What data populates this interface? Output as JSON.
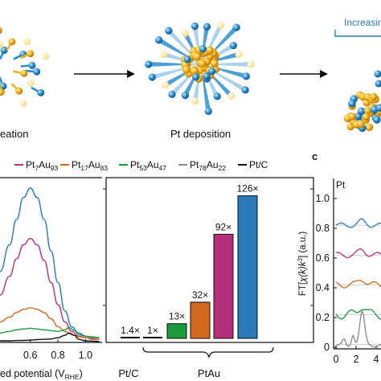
{
  "schematic": {
    "step_labels": [
      "eation",
      "Pt deposition"
    ],
    "increasing_label": "Increasin"
  },
  "panel_c_letter": "c",
  "legend": [
    {
      "base": "Pt",
      "sub1": "7",
      "mid": "Au",
      "sub2": "93",
      "color": "#b5307a"
    },
    {
      "base": "Pt",
      "sub1": "17",
      "mid": "Au",
      "sub2": "83",
      "color": "#d2691e"
    },
    {
      "base": "Pt",
      "sub1": "53",
      "mid": "Au",
      "sub2": "47",
      "color": "#1a9a3a"
    },
    {
      "base": "Pt",
      "sub1": "78",
      "mid": "Au",
      "sub2": "22",
      "color": "#888888"
    },
    {
      "base": "Pt/C",
      "sub1": "",
      "mid": "",
      "sub2": "",
      "color": "#111111"
    }
  ],
  "chart_data": [
    {
      "type": "line",
      "xlabel_visible": "ed potential (V",
      "xlabel_sub": "RHE",
      "xlabel_end": ")",
      "x_ticks": [
        "0.6",
        "0.8",
        "1.0"
      ],
      "xlim": [
        0.38,
        1.12
      ],
      "series": [
        {
          "name": "",
          "color": "#2a7ab8",
          "x": [
            0.38,
            0.45,
            0.5,
            0.55,
            0.6,
            0.65,
            0.7,
            0.75,
            0.8,
            0.85,
            0.9,
            0.95,
            1.0,
            1.05,
            1.1
          ],
          "y": [
            0.45,
            0.62,
            0.78,
            0.92,
            0.98,
            0.92,
            0.78,
            0.58,
            0.38,
            0.2,
            0.1,
            0.06,
            0.04,
            0.03,
            0.03
          ]
        },
        {
          "name": "Pt7Au93",
          "color": "#b5307a",
          "x": [
            0.38,
            0.45,
            0.5,
            0.55,
            0.6,
            0.65,
            0.7,
            0.75,
            0.8,
            0.85,
            0.9,
            0.95,
            1.0,
            1.05,
            1.1
          ],
          "y": [
            0.3,
            0.42,
            0.53,
            0.62,
            0.66,
            0.62,
            0.52,
            0.38,
            0.24,
            0.13,
            0.07,
            0.04,
            0.03,
            0.02,
            0.02
          ]
        },
        {
          "name": "Pt17Au83",
          "color": "#d2691e",
          "x": [
            0.38,
            0.45,
            0.5,
            0.55,
            0.6,
            0.65,
            0.7,
            0.75,
            0.8,
            0.85,
            0.9,
            0.95,
            1.0,
            1.05,
            1.1
          ],
          "y": [
            0.13,
            0.16,
            0.19,
            0.21,
            0.22,
            0.21,
            0.19,
            0.15,
            0.1,
            0.07,
            0.05,
            0.035,
            0.03,
            0.025,
            0.02
          ]
        },
        {
          "name": "Pt53Au47",
          "color": "#1a9a3a",
          "x": [
            0.38,
            0.45,
            0.5,
            0.55,
            0.6,
            0.65,
            0.7,
            0.75,
            0.8,
            0.85,
            0.88,
            0.92,
            0.95,
            1.0,
            1.05,
            1.1
          ],
          "y": [
            0.06,
            0.07,
            0.08,
            0.085,
            0.09,
            0.085,
            0.08,
            0.075,
            0.07,
            0.08,
            0.095,
            0.075,
            0.05,
            0.04,
            0.035,
            0.03
          ]
        },
        {
          "name": "Pt/C",
          "color": "#111111",
          "x": [
            0.38,
            0.45,
            0.5,
            0.55,
            0.6,
            0.65,
            0.7,
            0.75,
            0.8,
            0.85,
            0.88,
            0.92,
            0.95,
            1.0,
            1.05,
            1.1
          ],
          "y": [
            0.01,
            0.01,
            0.012,
            0.013,
            0.015,
            0.018,
            0.02,
            0.022,
            0.03,
            0.045,
            0.06,
            0.045,
            0.02,
            0.01,
            0.008,
            0.006
          ]
        }
      ]
    },
    {
      "type": "bar",
      "categories": [
        "Pt/C",
        "1×",
        "13×",
        "32×",
        "92×",
        "126×"
      ],
      "values": [
        1.4,
        1,
        13,
        32,
        92,
        126
      ],
      "value_labels": [
        "1.4×",
        "1×",
        "13×",
        "32×",
        "92×",
        "126×"
      ],
      "colors": [
        "#111111",
        "#111111",
        "#1a9a3a",
        "#d2691e",
        "#b5307a",
        "#2a7ab8"
      ],
      "group_labels": [
        "Pt/C",
        "PtAu"
      ],
      "ylim": [
        0,
        140
      ]
    },
    {
      "type": "line",
      "ylabel_pre": "FT[",
      "ylabel_mid": "χ(k)k",
      "ylabel_sup": "3",
      "ylabel_post": "] (a.u.)",
      "y_ticks": [
        "0",
        "0.2",
        "0.4",
        "0.6",
        "0.8",
        "1.0"
      ],
      "x_ticks": [
        "0",
        "2",
        "4"
      ],
      "annotation": "Pt",
      "ylim": [
        0,
        1.08
      ],
      "xlim": [
        0,
        5.2
      ],
      "series": [
        {
          "name": "",
          "color": "#2a7ab8",
          "offset": 0.8,
          "amp": 0.03
        },
        {
          "name": "",
          "color": "#b5307a",
          "offset": 0.6,
          "amp": 0.035
        },
        {
          "name": "",
          "color": "#d2691e",
          "offset": 0.4,
          "amp": 0.04
        },
        {
          "name": "",
          "color": "#1a9a3a",
          "offset": 0.2,
          "amp": 0.06
        },
        {
          "name": "",
          "color": "#888888",
          "offset": 0.0,
          "amp": 0.25
        }
      ]
    }
  ]
}
